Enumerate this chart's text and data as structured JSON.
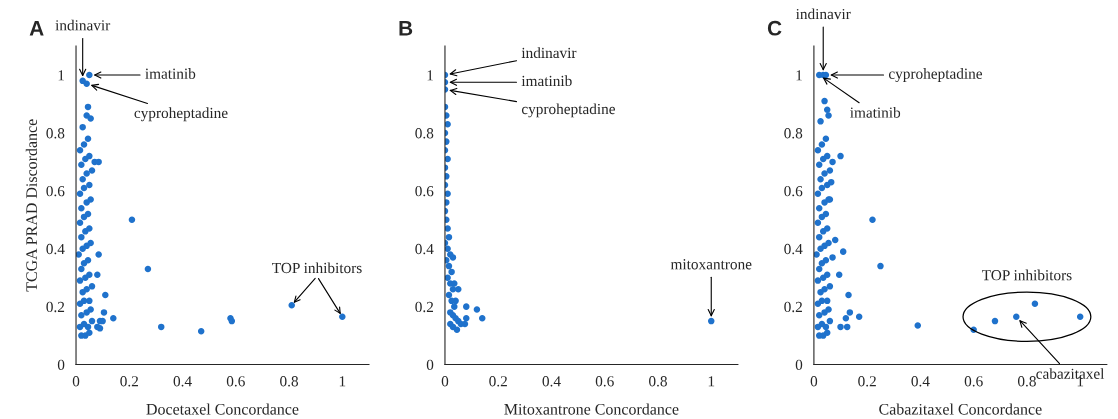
{
  "chart_data": [
    {
      "type": "scatter",
      "title": "A",
      "xlabel": "Docetaxel Concordance",
      "ylabel": "TCGA PRAD Discordance",
      "xlim": [
        0,
        1.1
      ],
      "ylim": [
        0,
        1.1
      ],
      "xticks": [
        0,
        0.2,
        0.4,
        0.6,
        0.8,
        1
      ],
      "yticks": [
        0,
        0.2,
        0.4,
        0.6,
        0.8,
        1
      ],
      "marker": "circle",
      "grid": false,
      "series": [
        {
          "color": "#1f72cc",
          "x": [
            0.02,
            0.035,
            0.05,
            0.015,
            0.03,
            0.045,
            0.06,
            0.02,
            0.04,
            0.055,
            0.015,
            0.03,
            0.05,
            0.025,
            0.04,
            0.06,
            0.015,
            0.035,
            0.05,
            0.02,
            0.03,
            0.045,
            0.01,
            0.025,
            0.04,
            0.055,
            0.02,
            0.035,
            0.05,
            0.015,
            0.03,
            0.045,
            0.02,
            0.04,
            0.055,
            0.015,
            0.03,
            0.05,
            0.025,
            0.04,
            0.06,
            0.02,
            0.035,
            0.05,
            0.015,
            0.03,
            0.045,
            0.025,
            0.05,
            0.025,
            0.04,
            0.045,
            0.04,
            0.055,
            0.07,
            0.085,
            0.21,
            0.27,
            0.085,
            0.08,
            0.11,
            0.105,
            0.14,
            0.09,
            0.1,
            0.08,
            0.09,
            0.32,
            0.47,
            0.58,
            0.585
          ],
          "values": [
            0.1,
            0.1,
            0.11,
            0.13,
            0.14,
            0.13,
            0.15,
            0.17,
            0.18,
            0.19,
            0.21,
            0.22,
            0.22,
            0.25,
            0.26,
            0.27,
            0.29,
            0.3,
            0.31,
            0.33,
            0.35,
            0.36,
            0.38,
            0.4,
            0.41,
            0.42,
            0.44,
            0.46,
            0.47,
            0.49,
            0.51,
            0.52,
            0.54,
            0.56,
            0.57,
            0.59,
            0.61,
            0.62,
            0.64,
            0.66,
            0.67,
            0.69,
            0.71,
            0.72,
            0.74,
            0.76,
            0.78,
            0.82,
            1.0,
            0.98,
            0.97,
            0.89,
            0.86,
            0.85,
            0.7,
            0.7,
            0.5,
            0.33,
            0.38,
            0.31,
            0.24,
            0.18,
            0.16,
            0.15,
            0.15,
            0.13,
            0.125,
            0.13,
            0.115,
            0.16,
            0.15
          ]
        },
        {
          "name": "TOP inhibitors",
          "color": "#1f72cc",
          "x": [
            0.81,
            1.0
          ],
          "values": [
            0.205,
            0.165
          ]
        }
      ],
      "annotations": [
        {
          "text": "indinavir",
          "x": 0.025,
          "y": 0.98
        },
        {
          "text": "imatinib",
          "x": 0.05,
          "y": 1.0
        },
        {
          "text": "cyproheptadine",
          "x": 0.04,
          "y": 0.97
        }
      ]
    },
    {
      "type": "scatter",
      "title": "B",
      "xlabel": "Mitoxantrone Concordance",
      "xlim": [
        0,
        1.1
      ],
      "ylim": [
        0,
        1.1
      ],
      "xticks": [
        0,
        0.2,
        0.4,
        0.6,
        0.8,
        1
      ],
      "yticks": [
        0,
        0.2,
        0.4,
        0.6,
        0.8,
        1
      ],
      "marker": "circle",
      "grid": false,
      "series": [
        {
          "color": "#1f72cc",
          "x": [
            0.0,
            0.005,
            0.01,
            0.0,
            0.005,
            0.0,
            0.01,
            0.0,
            0.005,
            0.0,
            0.01,
            0.005,
            0.0,
            0.005,
            0.01,
            0.015,
            0.0,
            0.01,
            0.02,
            0.005,
            0.015,
            0.025,
            0.01,
            0.02,
            0.03,
            0.015,
            0.025,
            0.035,
            0.02,
            0.03,
            0.04,
            0.02,
            0.03,
            0.045,
            0.05,
            0.06,
            0.0,
            0.0,
            0.0,
            0.035,
            0.05,
            0.04,
            0.08,
            0.12,
            0.14,
            0.08,
            0.075,
            0.03,
            1.0
          ],
          "values": [
            0.89,
            0.86,
            0.83,
            0.8,
            0.77,
            0.74,
            0.71,
            0.68,
            0.65,
            0.62,
            0.59,
            0.56,
            0.53,
            0.5,
            0.47,
            0.44,
            0.42,
            0.4,
            0.38,
            0.36,
            0.34,
            0.32,
            0.3,
            0.28,
            0.26,
            0.24,
            0.22,
            0.2,
            0.18,
            0.17,
            0.16,
            0.14,
            0.13,
            0.12,
            0.15,
            0.14,
            1.0,
            0.975,
            0.95,
            0.28,
            0.26,
            0.22,
            0.2,
            0.19,
            0.16,
            0.16,
            0.14,
            0.37,
            0.15
          ]
        }
      ],
      "annotations": [
        {
          "text": "indinavir",
          "x": 0.0,
          "y": 1.0
        },
        {
          "text": "imatinib",
          "x": 0.0,
          "y": 0.975
        },
        {
          "text": "cyproheptadine",
          "x": 0.0,
          "y": 0.95
        },
        {
          "text": "mitoxantrone",
          "x": 1.0,
          "y": 0.15
        }
      ]
    },
    {
      "type": "scatter",
      "title": "C",
      "xlabel": "Cabazitaxel Concordance",
      "xlim": [
        0,
        1.1
      ],
      "ylim": [
        0,
        1.1
      ],
      "xticks": [
        0,
        0.2,
        0.4,
        0.6,
        0.8,
        1
      ],
      "yticks": [
        0,
        0.2,
        0.4,
        0.6,
        0.8,
        1
      ],
      "marker": "circle",
      "grid": false,
      "series": [
        {
          "color": "#1f72cc",
          "x": [
            0.02,
            0.035,
            0.05,
            0.015,
            0.03,
            0.045,
            0.06,
            0.02,
            0.04,
            0.055,
            0.015,
            0.03,
            0.05,
            0.025,
            0.04,
            0.06,
            0.015,
            0.035,
            0.05,
            0.02,
            0.03,
            0.045,
            0.01,
            0.025,
            0.04,
            0.055,
            0.02,
            0.035,
            0.05,
            0.015,
            0.03,
            0.045,
            0.02,
            0.04,
            0.055,
            0.015,
            0.03,
            0.05,
            0.025,
            0.04,
            0.06,
            0.02,
            0.035,
            0.05,
            0.015,
            0.03,
            0.045,
            0.025,
            0.02,
            0.035,
            0.045,
            0.04,
            0.05,
            0.055,
            0.1,
            0.07,
            0.065,
            0.06,
            0.22,
            0.08,
            0.11,
            0.07,
            0.25,
            0.095,
            0.13,
            0.135,
            0.17,
            0.12,
            0.1,
            0.125,
            0.39
          ],
          "values": [
            0.1,
            0.1,
            0.11,
            0.13,
            0.14,
            0.13,
            0.15,
            0.17,
            0.18,
            0.19,
            0.21,
            0.22,
            0.22,
            0.25,
            0.26,
            0.27,
            0.29,
            0.3,
            0.31,
            0.33,
            0.35,
            0.36,
            0.38,
            0.4,
            0.41,
            0.42,
            0.44,
            0.46,
            0.47,
            0.49,
            0.51,
            0.52,
            0.54,
            0.56,
            0.57,
            0.59,
            0.61,
            0.62,
            0.64,
            0.66,
            0.67,
            0.69,
            0.71,
            0.72,
            0.74,
            0.76,
            0.78,
            0.84,
            1.0,
            1.0,
            1.0,
            0.91,
            0.88,
            0.86,
            0.72,
            0.7,
            0.63,
            0.57,
            0.5,
            0.43,
            0.39,
            0.37,
            0.34,
            0.31,
            0.24,
            0.18,
            0.165,
            0.16,
            0.13,
            0.13,
            0.135
          ]
        },
        {
          "name": "TOP inhibitors",
          "color": "#1f72cc",
          "x": [
            0.6,
            0.68,
            0.76,
            0.83,
            1.0
          ],
          "values": [
            0.12,
            0.15,
            0.165,
            0.21,
            0.165
          ]
        }
      ],
      "annotations": [
        {
          "text": "indinavir",
          "x": 0.035,
          "y": 1.0
        },
        {
          "text": "cyproheptadine",
          "x": 0.045,
          "y": 1.0
        },
        {
          "text": "imatinib",
          "x": 0.02,
          "y": 1.0
        },
        {
          "text": "cabazitaxel",
          "x": 0.76,
          "y": 0.165
        }
      ]
    }
  ]
}
